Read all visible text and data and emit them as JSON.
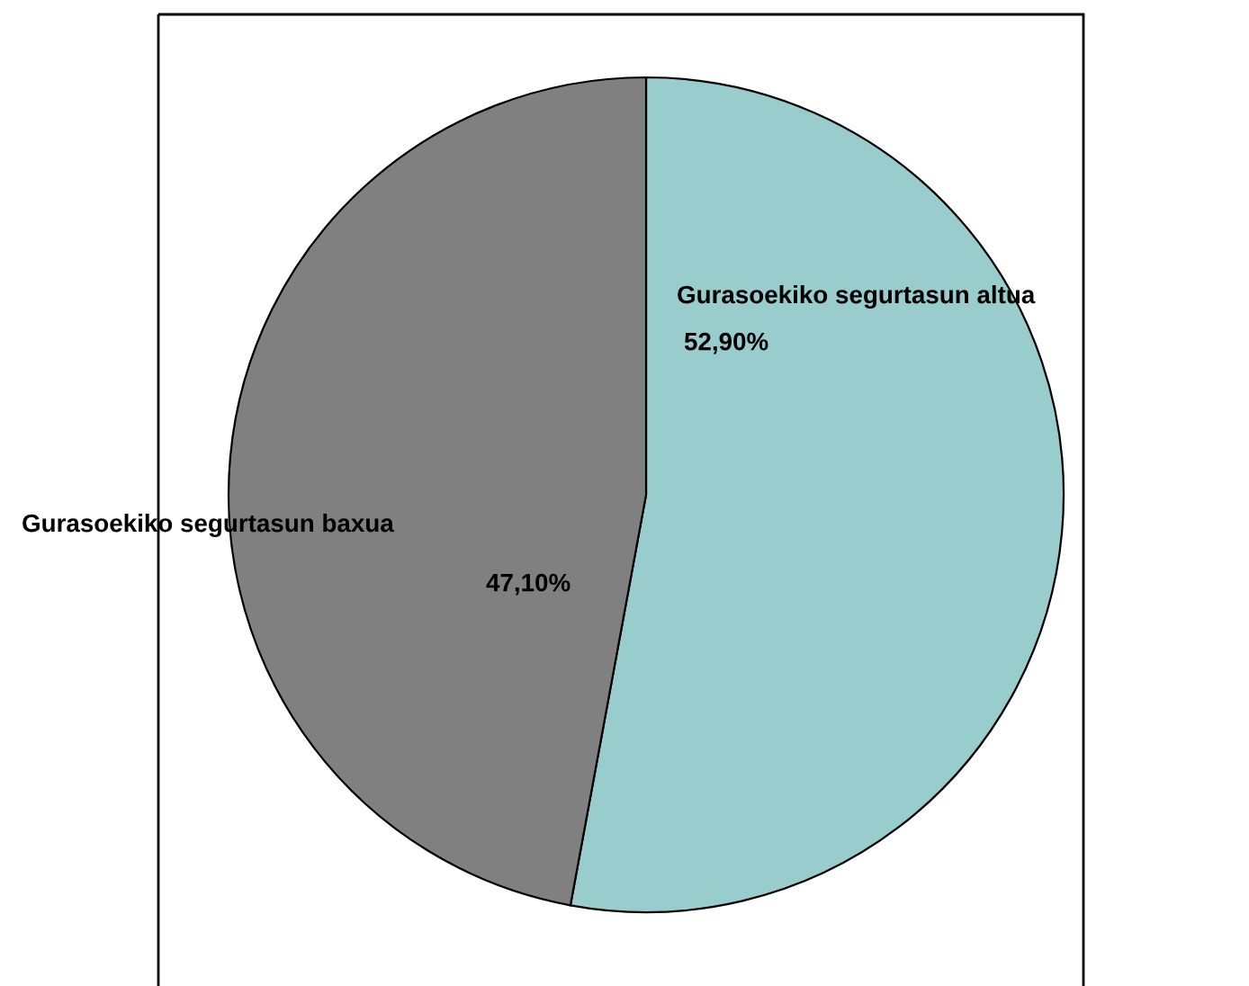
{
  "chart_data": {
    "type": "pie",
    "categories": [
      "Gurasoekiko segurtasun altua",
      "Gurasoekiko segurtasun baxua"
    ],
    "values": [
      52.9,
      47.1
    ],
    "colors": [
      "#99cccc",
      "#808080"
    ],
    "value_labels": [
      "52,90%",
      "47,10%"
    ]
  }
}
